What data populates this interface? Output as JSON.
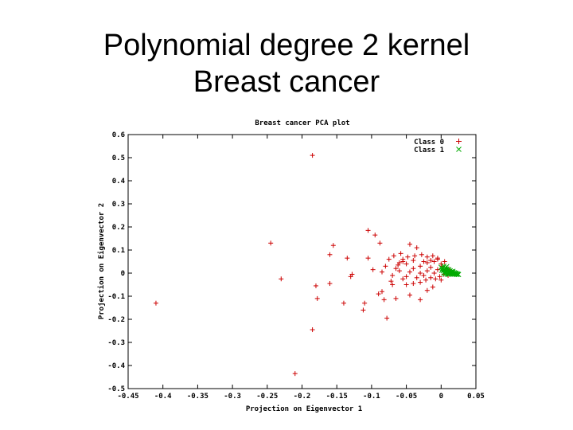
{
  "slide": {
    "title_line1": "Polynomial degree 2 kernel",
    "title_line2": "Breast cancer"
  },
  "chart_data": {
    "type": "scatter",
    "title": "Breast cancer PCA plot",
    "xlabel": "Projection on Eigenvector 1",
    "ylabel": "Projection on Eigenvector 2",
    "xlim": [
      -0.45,
      0.05
    ],
    "ylim": [
      -0.5,
      0.6
    ],
    "xticks": [
      "-0.45",
      "-0.4",
      "-0.35",
      "-0.3",
      "-0.25",
      "-0.2",
      "-0.15",
      "-0.1",
      "-0.05",
      "0",
      "0.05"
    ],
    "yticks": [
      "0.6",
      "0.5",
      "0.4",
      "0.3",
      "0.2",
      "0.1",
      "0",
      "-0.1",
      "-0.2",
      "-0.3",
      "-0.4",
      "-0.5"
    ],
    "legend_position": "top-right",
    "series": [
      {
        "name": "Class 0",
        "marker": "+",
        "color": "#cc0000",
        "points": [
          [
            -0.185,
            0.51
          ],
          [
            -0.41,
            -0.13
          ],
          [
            -0.245,
            0.13
          ],
          [
            -0.23,
            -0.025
          ],
          [
            -0.18,
            -0.055
          ],
          [
            -0.178,
            -0.11
          ],
          [
            -0.185,
            -0.245
          ],
          [
            -0.21,
            -0.435
          ],
          [
            -0.16,
            -0.045
          ],
          [
            -0.16,
            0.08
          ],
          [
            -0.155,
            0.12
          ],
          [
            -0.135,
            0.065
          ],
          [
            -0.13,
            -0.015
          ],
          [
            -0.128,
            -0.005
          ],
          [
            -0.14,
            -0.13
          ],
          [
            -0.11,
            -0.13
          ],
          [
            -0.112,
            -0.16
          ],
          [
            -0.105,
            0.185
          ],
          [
            -0.095,
            0.165
          ],
          [
            -0.088,
            0.13
          ],
          [
            -0.105,
            0.065
          ],
          [
            -0.098,
            0.015
          ],
          [
            -0.09,
            -0.09
          ],
          [
            -0.085,
            -0.08
          ],
          [
            -0.078,
            -0.195
          ],
          [
            -0.082,
            -0.115
          ],
          [
            -0.065,
            -0.11
          ],
          [
            -0.07,
            -0.05
          ],
          [
            -0.045,
            -0.095
          ],
          [
            -0.03,
            -0.115
          ],
          [
            -0.045,
            0.125
          ],
          [
            -0.035,
            0.11
          ],
          [
            -0.055,
            0.06
          ],
          [
            -0.06,
            0.045
          ],
          [
            -0.065,
            0.02
          ],
          [
            -0.07,
            -0.01
          ],
          [
            -0.072,
            -0.035
          ],
          [
            -0.05,
            0.04
          ],
          [
            -0.04,
            0.055
          ],
          [
            -0.03,
            0.03
          ],
          [
            -0.025,
            0.05
          ],
          [
            -0.02,
            0.045
          ],
          [
            -0.015,
            0.055
          ],
          [
            -0.01,
            0.05
          ],
          [
            -0.005,
            0.06
          ],
          [
            0.0,
            0.04
          ],
          [
            0.005,
            0.05
          ],
          [
            0.008,
            0.02
          ],
          [
            -0.005,
            0.015
          ],
          [
            -0.01,
            0.0
          ],
          [
            -0.015,
            0.025
          ],
          [
            -0.02,
            0.01
          ],
          [
            -0.025,
            -0.01
          ],
          [
            -0.03,
            0.0
          ],
          [
            -0.035,
            -0.02
          ],
          [
            -0.04,
            0.02
          ],
          [
            -0.045,
            0.005
          ],
          [
            -0.05,
            -0.015
          ],
          [
            -0.055,
            -0.025
          ],
          [
            -0.06,
            0.01
          ],
          [
            -0.062,
            0.035
          ],
          [
            -0.055,
            0.05
          ],
          [
            -0.048,
            0.07
          ],
          [
            -0.038,
            0.075
          ],
          [
            -0.028,
            0.08
          ],
          [
            -0.02,
            0.07
          ],
          [
            -0.012,
            0.075
          ],
          [
            -0.005,
            0.065
          ],
          [
            0.002,
            0.03
          ],
          [
            0.006,
            0.012
          ],
          [
            0.004,
            -0.005
          ],
          [
            -0.002,
            -0.015
          ],
          [
            -0.008,
            -0.025
          ],
          [
            -0.015,
            -0.02
          ],
          [
            -0.022,
            -0.03
          ],
          [
            -0.03,
            -0.04
          ],
          [
            -0.04,
            -0.045
          ],
          [
            -0.05,
            -0.05
          ],
          [
            -0.012,
            -0.06
          ],
          [
            -0.02,
            -0.075
          ],
          [
            0.0,
            -0.03
          ],
          [
            0.01,
            0.005
          ],
          [
            0.012,
            0.015
          ],
          [
            0.014,
            0.0
          ],
          [
            0.01,
            -0.01
          ],
          [
            -0.075,
            0.06
          ],
          [
            -0.08,
            0.03
          ],
          [
            -0.085,
            0.005
          ],
          [
            -0.068,
            0.075
          ],
          [
            -0.058,
            0.085
          ]
        ]
      },
      {
        "name": "Class 1",
        "marker": "x",
        "color": "#00aa00",
        "points": [
          [
            0.0,
            0.025
          ],
          [
            0.002,
            0.02
          ],
          [
            0.004,
            0.03
          ],
          [
            0.005,
            0.015
          ],
          [
            0.006,
            0.022
          ],
          [
            0.007,
            0.01
          ],
          [
            0.008,
            0.018
          ],
          [
            0.009,
            0.005
          ],
          [
            0.01,
            0.012
          ],
          [
            0.011,
            0.0
          ],
          [
            0.012,
            0.008
          ],
          [
            0.013,
            -0.002
          ],
          [
            0.014,
            0.005
          ],
          [
            0.015,
            0.0
          ],
          [
            0.016,
            -0.004
          ],
          [
            0.017,
            0.003
          ],
          [
            0.018,
            -0.002
          ],
          [
            0.019,
            -0.005
          ],
          [
            0.02,
            -0.001
          ],
          [
            0.021,
            -0.004
          ],
          [
            0.022,
            -0.006
          ],
          [
            0.023,
            -0.003
          ],
          [
            0.024,
            -0.005
          ],
          [
            0.025,
            -0.006
          ],
          [
            0.003,
            0.01
          ],
          [
            0.005,
            0.005
          ],
          [
            0.007,
            0.0
          ],
          [
            0.009,
            -0.003
          ],
          [
            0.011,
            0.015
          ],
          [
            0.013,
            0.01
          ],
          [
            0.015,
            0.006
          ],
          [
            0.017,
            0.008
          ],
          [
            0.019,
            0.002
          ],
          [
            0.021,
            0.0
          ],
          [
            0.008,
            0.028
          ],
          [
            0.006,
            -0.004
          ],
          [
            0.01,
            -0.006
          ],
          [
            0.012,
            -0.004
          ],
          [
            0.001,
            0.012
          ],
          [
            0.004,
            0.0
          ]
        ]
      }
    ]
  }
}
